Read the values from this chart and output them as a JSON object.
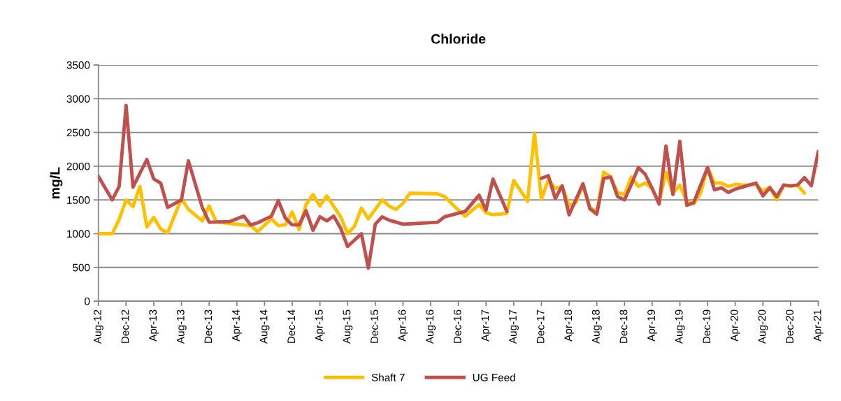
{
  "chart_data": {
    "type": "line",
    "title": "Chloride",
    "ylabel": "mg/L",
    "xlim": [
      "2012-08",
      "2021-04"
    ],
    "xticks": [
      {
        "value": "2012-08",
        "label": "Aug-12"
      },
      {
        "value": "2012-12",
        "label": "Dec-12"
      },
      {
        "value": "2013-04",
        "label": "Apr-13"
      },
      {
        "value": "2013-08",
        "label": "Aug-13"
      },
      {
        "value": "2013-12",
        "label": "Dec-13"
      },
      {
        "value": "2014-04",
        "label": "Apr-14"
      },
      {
        "value": "2014-08",
        "label": "Aug-14"
      },
      {
        "value": "2014-12",
        "label": "Dec-14"
      },
      {
        "value": "2015-04",
        "label": "Apr-15"
      },
      {
        "value": "2015-08",
        "label": "Aug-15"
      },
      {
        "value": "2015-12",
        "label": "Dec-15"
      },
      {
        "value": "2016-04",
        "label": "Apr-16"
      },
      {
        "value": "2016-08",
        "label": "Aug-16"
      },
      {
        "value": "2016-12",
        "label": "Dec-16"
      },
      {
        "value": "2017-04",
        "label": "Apr-17"
      },
      {
        "value": "2017-08",
        "label": "Aug-17"
      },
      {
        "value": "2017-12",
        "label": "Dec-17"
      },
      {
        "value": "2018-04",
        "label": "Apr-18"
      },
      {
        "value": "2018-08",
        "label": "Aug-18"
      },
      {
        "value": "2018-12",
        "label": "Dec-18"
      },
      {
        "value": "2019-04",
        "label": "Apr-19"
      },
      {
        "value": "2019-08",
        "label": "Aug-19"
      },
      {
        "value": "2019-12",
        "label": "Dec-19"
      },
      {
        "value": "2020-04",
        "label": "Apr-20"
      },
      {
        "value": "2020-08",
        "label": "Aug-20"
      },
      {
        "value": "2020-12",
        "label": "Dec-20"
      },
      {
        "value": "2021-04",
        "label": "Apr-21"
      }
    ],
    "ylim": [
      0,
      3500
    ],
    "yticks": [
      0,
      500,
      1000,
      1500,
      2000,
      2500,
      3000,
      3500
    ],
    "grid": "y",
    "legend": "bottom",
    "marker": "none",
    "line_style": "solid",
    "series": [
      {
        "name": "Shaft 7",
        "color": "#ffc000",
        "x": [
          "2012-08",
          "2012-10",
          "2012-11",
          "2012-12",
          "2013-01",
          "2013-02",
          "2013-03",
          "2013-04",
          "2013-05",
          "2013-06",
          "2013-08",
          "2013-09",
          "2013-11",
          "2013-12",
          "2014-01",
          "2014-03",
          "2014-06",
          "2014-07",
          "2014-09",
          "2014-10",
          "2014-11",
          "2014-12",
          "2015-01",
          "2015-02",
          "2015-03",
          "2015-04",
          "2015-05",
          "2015-07",
          "2015-08",
          "2015-09",
          "2015-10",
          "2015-11",
          "2016-01",
          "2016-02",
          "2016-03",
          "2016-04",
          "2016-05",
          "2016-09",
          "2016-10",
          "2016-12",
          "2017-01",
          "2017-03",
          "2017-04",
          "2017-05",
          "2017-07",
          "2017-08",
          "2017-10",
          "2017-11",
          "2017-12",
          "2018-01",
          "2018-02",
          "2018-03",
          "2018-04",
          "2018-05",
          "2018-06",
          "2018-07",
          "2018-08",
          "2018-09",
          "2018-10",
          "2018-11",
          "2018-12",
          "2019-01",
          "2019-02",
          "2019-03",
          "2019-04",
          "2019-05",
          "2019-06",
          "2019-07",
          "2019-08",
          "2019-09",
          "2019-10",
          "2019-11",
          "2019-12",
          "2020-01",
          "2020-02",
          "2020-03",
          "2020-04",
          "2020-05",
          "2020-06",
          "2020-07",
          "2020-08",
          "2020-09",
          "2020-10",
          "2020-11",
          "2020-12",
          "2021-01",
          "2021-02"
        ],
        "values": [
          1000,
          1000,
          1210,
          1500,
          1400,
          1700,
          1100,
          1240,
          1070,
          1010,
          1520,
          1360,
          1190,
          1410,
          1180,
          1150,
          1120,
          1030,
          1220,
          1120,
          1130,
          1320,
          1060,
          1430,
          1580,
          1410,
          1560,
          1250,
          1000,
          1110,
          1380,
          1220,
          1500,
          1410,
          1360,
          1450,
          1600,
          1590,
          1550,
          1350,
          1260,
          1430,
          1310,
          1280,
          1300,
          1790,
          1480,
          2490,
          1510,
          1800,
          1670,
          1700,
          1420,
          1460,
          1730,
          1390,
          1320,
          1910,
          1840,
          1610,
          1580,
          1840,
          1700,
          1750,
          1670,
          1460,
          1910,
          1600,
          1720,
          1480,
          1440,
          1600,
          1980,
          1750,
          1750,
          1700,
          1730,
          1720,
          1720,
          1730,
          1630,
          1690,
          1500,
          1720,
          1700,
          1720,
          1600
        ]
      },
      {
        "name": "UG Feed",
        "color": "#c0504d",
        "x": [
          "2012-08",
          "2012-10",
          "2012-11",
          "2012-12",
          "2013-01",
          "2013-03",
          "2013-04",
          "2013-05",
          "2013-06",
          "2013-08",
          "2013-09",
          "2013-11",
          "2013-12",
          "2014-03",
          "2014-05",
          "2014-06",
          "2014-07",
          "2014-09",
          "2014-10",
          "2014-11",
          "2014-12",
          "2015-01",
          "2015-02",
          "2015-03",
          "2015-04",
          "2015-05",
          "2015-06",
          "2015-07",
          "2015-08",
          "2015-10",
          "2015-11",
          "2015-12",
          "2016-01",
          "2016-02",
          "2016-04",
          "2016-09",
          "2016-10",
          "2017-01",
          "2017-03",
          "2017-04",
          "2017-05",
          "2017-07",
          "2017-10",
          "2017-12",
          "2018-01",
          "2018-02",
          "2018-03",
          "2018-04",
          "2018-06",
          "2018-07",
          "2018-08",
          "2018-09",
          "2018-10",
          "2018-11",
          "2018-12",
          "2019-01",
          "2019-02",
          "2019-03",
          "2019-04",
          "2019-05",
          "2019-06",
          "2019-07",
          "2019-08",
          "2019-09",
          "2019-10",
          "2019-12",
          "2020-01",
          "2020-02",
          "2020-03",
          "2020-04",
          "2020-05",
          "2020-06",
          "2020-07",
          "2020-08",
          "2020-09",
          "2020-10",
          "2020-11",
          "2020-12",
          "2021-01",
          "2021-02",
          "2021-03",
          "2021-04"
        ],
        "values": [
          1850,
          1500,
          1700,
          2900,
          1690,
          2100,
          1810,
          1750,
          1390,
          1500,
          2080,
          1390,
          1170,
          1180,
          1260,
          1130,
          1160,
          1260,
          1490,
          1230,
          1130,
          1130,
          1340,
          1050,
          1250,
          1190,
          1260,
          1080,
          810,
          1000,
          490,
          1140,
          1250,
          1200,
          1140,
          1170,
          1250,
          1330,
          1570,
          1350,
          1810,
          1330,
          null,
          1820,
          1860,
          1520,
          1710,
          1280,
          1740,
          1370,
          1290,
          1820,
          1840,
          1550,
          1500,
          1730,
          1980,
          1880,
          1670,
          1440,
          2300,
          1580,
          2370,
          1420,
          1460,
          1980,
          1650,
          1680,
          1610,
          1660,
          1690,
          1720,
          1750,
          1560,
          1680,
          1550,
          1720,
          1710,
          1720,
          1830,
          1710,
          2220
        ]
      }
    ]
  }
}
